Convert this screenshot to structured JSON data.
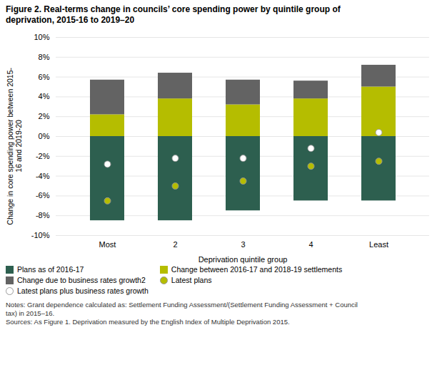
{
  "chart_data": {
    "type": "bar",
    "title": "Figure 2. Real-terms change in councils’ core spending power by quintile group of\ndeprivation, 2015-16 to 2019–20",
    "caption": "Notes: Grant dependence calculated as: Settlement Funding Assessment/(Settlement Funding Assessment + Council\ntax) in 2015–16.\nSources: As Figure 1. Deprivation measured by the English Index of Multiple Deprivation 2015.",
    "categories": [
      "Most",
      "2",
      "3",
      "4",
      "Least"
    ],
    "xlabel": "Deprivation quintile group",
    "ylabel": "Change in core spending power between 2015-\n16 and 2019-20",
    "stacked": true,
    "grid": true,
    "legend": "bottom",
    "series": [
      {
        "name": "Plans as of 2016-17",
        "type": "bar",
        "color": "#2d5f4f",
        "values": [
          -8.5,
          -8.5,
          -7.5,
          -6.5,
          -6.5
        ]
      },
      {
        "name": "Change between 2016-17 and 2018-19 settlements",
        "type": "bar",
        "color": "#b5bd00",
        "values": [
          2.2,
          3.8,
          3.2,
          3.8,
          5.0
        ]
      },
      {
        "name": "Change due to business rates growth2",
        "type": "bar",
        "color": "#636363",
        "values": [
          3.5,
          2.6,
          2.5,
          1.8,
          2.2
        ]
      },
      {
        "name": "Latest plans",
        "type": "scatter",
        "marker": "o",
        "color": "#b5bd00",
        "values": [
          -6.5,
          -5.0,
          -4.5,
          -3.0,
          -2.5
        ]
      },
      {
        "name": "Latest plans plus business rates growth",
        "type": "scatter",
        "marker": "o",
        "color": "#ffffff",
        "values": [
          -2.8,
          -2.2,
          -2.2,
          -1.2,
          0.4
        ]
      }
    ],
    "ylim": [
      -10,
      10
    ],
    "yticks": [
      {
        "value": -10,
        "label": "-10%"
      },
      {
        "value": -8,
        "label": "-8%"
      },
      {
        "value": -6,
        "label": "-6%"
      },
      {
        "value": -4,
        "label": "-4%"
      },
      {
        "value": -2,
        "label": "-2%"
      },
      {
        "value": 0,
        "label": "0%"
      },
      {
        "value": 2,
        "label": "2%"
      },
      {
        "value": 4,
        "label": "4%"
      },
      {
        "value": 6,
        "label": "6%"
      },
      {
        "value": 8,
        "label": "8%"
      },
      {
        "value": 10,
        "label": "10%"
      }
    ]
  }
}
